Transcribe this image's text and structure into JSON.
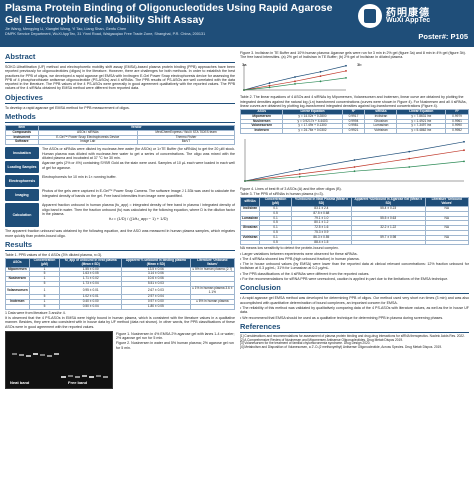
{
  "header": {
    "title": "Plasma Protein Binding of Oligonucleotides Using Rapid Agarose Gel Electrophoretic Mobility Shift Assay",
    "authors": "Jie Wang, Mengying Li, Xiangfei Wang, Yi Tao, Liang Shan, Genfu Chen",
    "affiliation": "DMPK Service Department, WuXi AppTec, 31 Yinni Road, Waigaoqiao Free Trade Zone, Shanghai, P.R. China, 200131",
    "logo_cn": "药明康德",
    "logo_en": "WuXi AppTec",
    "poster_no": "Poster#: P105"
  },
  "abstract": {
    "heading": "Abstract",
    "text": "SOKO-Ultrafiltration (UF) method and electrophoretic mobility shift assay (EMSA)-based plasma protein binding (PPB) approaches have been reported previously for oligonucleotides (oligos) in the literature. However, there are challenges for both methods. In order to establish the best practices for PPB of oligos, we developed a rapid agarose gel EMSA with Invitrogen E-Gel Power Snap electrophoresis device for assessing the PPB of 4 phosphorothioate antisense oligonucleotide (PS-ASOs) and 4 siRNAs. The PPB results of PS-ASOs are well correlated with the data reported in the literature. The PPB values of the 4 PS-ASOs were generally in good agreement qualitatively with the reported values. The PPB values of the 4 siRNAs obtained by EMSA method were different from reported data."
  },
  "objectives": {
    "heading": "Objectives",
    "text": "To develop a rapid agarose gel EMSA method for PPB measurement of oligos."
  },
  "methods": {
    "heading": "Methods",
    "table1_header": [
      "Item",
      "Vendor"
    ],
    "table1_rows": [
      [
        "Compounds",
        "ASOs / siRNAs",
        "MedChemExpress / WuXi STA TIDES team"
      ],
      [
        "Instrument",
        "E-Gel™ Power Snap Electrophoresis Device",
        "Thermo Fisher"
      ],
      [
        "Software",
        "Image Lab",
        "BioVT"
      ]
    ],
    "steps": [
      {
        "label": "Incubation",
        "text": "The ASOs or siRNAs were diluted by nuclease-free water (for ASOs) or 1×TE Buffer (for siRNAs) to get the 20 μM stock. Human plasma was diluted with nuclease-free water to get a series of concentrations. The oligo was mixed with the diluted plasma and incubated at 37 °C for 30 min."
      },
      {
        "label": "Loading Samples",
        "text": "Agarose gels (2% or 4%) containing SYBR Gold as the stain were used. Samples of 10 μL each were loaded in each well of gel for agarose."
      },
      {
        "label": "Electrophoresis",
        "text": "Electrophoresis for 10 min in 1× running buffer."
      },
      {
        "label": "Imaging",
        "text": "Photos of the gels were captured in E-Gel™ Power Snap Camera. The software Image J 1.53k was used to calculate the integrated density of bands on the gel. Free band intensities from image were quantified."
      },
      {
        "label": "Calculation",
        "text": "Apparent fraction unbound in human plasma (fu_app) = integrated density of free band in plasma / integrated density of oligo band in water. Then the fraction unbound (fu) was calculated by the following equation, where D is the dilution factor in the plasma."
      }
    ],
    "equation": "fu = (1/D) / ((1/fu_app − 1) + 1/D)",
    "note": "The apparent fraction unbound was obtained by the following equation, and the ASO was measured in human plasma samples, which migrates more quickly than protein-bound oligo."
  },
  "results": {
    "heading": "Results",
    "table1_caption": "Table 1. PPB values of the 4 ASOs (3% diluted plasma, n=3).",
    "table1_header": [
      "ASOs",
      "Concentration (μM)",
      "fu_app of unbound in neat plasma (Mean ± SD)",
      "Apparent % unbound in binding plasma (Mean ± SD)",
      "Literature 'Unbound Values'"
    ],
    "table1_rows": [
      [
        "Mipomersen",
        "1",
        "1.55 ± 0.00",
        "13.5 ± 0.06",
        "≤ 5% in human plasma (2.7)"
      ],
      [
        "",
        "5",
        "1.63 ± 0.05",
        "3.14 ± 0.06",
        ""
      ],
      [
        "Nusinersen",
        "1",
        "1.71 ± 0.02",
        "10.6 ± 0.06",
        ""
      ],
      [
        "",
        "5",
        "1.73 ± 0.04",
        "5.51 ± 0.03",
        ""
      ],
      [
        "Volanesorsen",
        "1",
        "0.95 ± 0.01",
        "2.67 ± 0.03",
        "≤ 1% in human plasma 3.6 ± 1.1%"
      ],
      [
        "",
        "5",
        "1.02 ± 0.01",
        "2.97 ± 0.04",
        ""
      ],
      [
        "Inotersen",
        "1",
        "0.40 ± 0.00",
        "0.97 ± 0.00",
        "≤ 6% in human plasma"
      ],
      [
        "",
        "5",
        "0.50 ± 0.04",
        "1.80 ± 0.05",
        ""
      ]
    ],
    "table1_note": "1 Data were from literature 3 and/or 4.",
    "results_text": "It is observed that the 4 PS-ASOs in EMSA were highly bound in human plasma, which is consistent with the literature values in a qualitative manner. Besides, they were also consistent with in house data by UF method (data not shown). In other words, the PPB classifications of these ASOs were in good agreement with the reported values.",
    "gel_labels": {
      "left": "Neat band",
      "right": "Free band"
    },
    "fig1_caption": "Figure 1. Nusinersen in 4% EMSA 2% agarose gel with lanes 1-4 or water; 2% agarose gel run for 5 min.",
    "fig2_caption": "Figure 2. Nusinersen in water and 5% human plasma; 2% agarose gel run for 5 min."
  },
  "right": {
    "fig3_caption": "Figure 3. Inclisiran in TE Buffer and 10% human plasma: Agarose gels were run for 3 min in 2% gel (figure 3a) and 8 min in 4% gel (figure 3b). The free band intensities. (a) 2% gel of Inclisiran in TE Buffer; (b) 2% gel of Inclisiran in diluted plasma.",
    "fig3_labels": [
      "3a",
      "3b"
    ],
    "table2_caption": "Table 2. The linear equations of 4 ASOs and 4 siRNAs by Mipomersen, Volanesorsen and Inotersen, linear curve are obtained by plotting the integrated densities against the natural log (Ln) transformed concentrations (curves were shown in Figure 4). For Nusinersen and all 4 siRNAs, linear curves are obtained by plotting log-transformed integrated densities against log-transformed concentrations (Figure 4).",
    "table2_header": [
      "ASOs",
      "Linear Equation",
      "R²",
      "siRNAs",
      "Linear Equation",
      "R²"
    ],
    "table2_rows": [
      [
        "Mipomersen",
        "y = 14.02x + 0.2800",
        "0.9917",
        "Inclisiran",
        "y = 7.8631 lnx",
        "0.9979"
      ],
      [
        "Nusinersen",
        "y = 0.9217x + 4.4403",
        "0.9994",
        "Givosiran",
        "y = 1.4921 lnx",
        "0.9961"
      ],
      [
        "Volanesorsen",
        "y = 17.49x + 0.1300",
        "0.9981",
        "Lumasiran",
        "y = 7.3497 lnx",
        "0.9990"
      ],
      [
        "Inotersen",
        "y = 24.76x + 0.0302",
        "0.9921",
        "Vutrisiran",
        "y = 5.4862 lnx",
        "0.9952"
      ]
    ],
    "fig4_caption": "Figure 4. Lines of best fit of 3 ASOs (A) and the other oligos (B).",
    "table3_caption": "Table 3. The PPB of siRNAs in human plasma (n=3).",
    "table3_header": [
      "siRNAs",
      "Concentration (μM)",
      "%Unbound in Neat Plasma (Mean ± SD)",
      "Apparent %Unbound in Agarose Gel (Mean ± SD)",
      "Literature 'Unbound Values'"
    ],
    "table3_rows": [
      [
        "Inclisiran",
        "0.1",
        "83.1 ± 2.4",
        "55.4 ± 0.23",
        "NA"
      ],
      [
        "",
        "0.5",
        "87.5 ± 0.68",
        "",
        ""
      ],
      [
        "Lumasiran",
        "0.1",
        "79.1 ± 1.0",
        "55.5 ± 0.63",
        "NA"
      ],
      [
        "",
        "0.5",
        "80.1 ± 1.2",
        "",
        ""
      ],
      [
        "Givosiran",
        "0.1",
        "72.5 ± 1.6",
        "32.2 ± 1.22",
        "NA"
      ],
      [
        "",
        "0.5",
        "75.3 ± 0.9",
        "",
        ""
      ],
      [
        "Vutrisiran",
        "0.1",
        "86.3 ± 0.55",
        "59.7 ± 0.98",
        "NA"
      ],
      [
        "",
        "0.5",
        "88.4 ± 1.5",
        "",
        ""
      ]
    ],
    "table3_note": "NA means low sensitivity to detect the protein-bound complex.",
    "bullets": [
      "Larger variations between experiments were observed for these siRNAs.",
      "The 4 siRNAs showed low PPB (high unbound fraction) in human plasma.",
      "The in house unbound values (by EMSA) were lower than the reported data at clinical relevant concentrations: 12% fraction unbound for Inclisiran at 0.3 μg/mL; 31% for Lumasiran at 0.2 μg/mL.",
      "The PPB classifications of the 4 siRNAs were different from the reported values.",
      "For the recommendations for siRNA PPB were unresolved, caution is applied in part due to the limitations of the EMSA technique."
    ],
    "conclusion_heading": "Conclusion",
    "conclusions": [
      "A rapid agarose gel EMSA method was developed for determining PPB of oligos. Our method used very short run times (3 min) and was also accomplished with quantitative determination of bound complexes, an important concern for EMSA.",
      "The reliability of this method was validated by qualitatively comparing data of the 4 PS-ASOs with literature values, as well as the in house UF data.",
      "We recommend that EMSA should be used as a qualitative technique for determining PPB in plasma during screening phases."
    ],
    "refs_heading": "References",
    "refs": [
      "[1] Considerations and recommendations for assessment of plasma protein binding and drug-drug interactions for siRNA therapeutics. Nucleic Acids Res. 2022.",
      "[2] A Comprehensive Review of Nusinersen and Mipomersen Antisense Oligonucleotides. Drug Metab Dispos 2019.",
      "[3] Volanesorsen for the treatment of familial chylomicronemia syndrome. Drug Design 2020.",
      "[4] Metabolism and Disposition of Volanesorsen, a 2'-O-(2 methoxyethyl) Antisense Oligonucleotide, Across Species. Drug Metab Dispos. 2019."
    ]
  },
  "colors": {
    "brand": "#1f4e79",
    "band": "#e8e8e8",
    "gel": "#111111"
  },
  "chart_data": {
    "type": "line",
    "title": "",
    "series": [
      {
        "values": [
          [
            0,
            0
          ],
          [
            0.5,
            8
          ],
          [
            1,
            15
          ],
          [
            1.5,
            21
          ],
          [
            2,
            28
          ]
        ]
      },
      {
        "values": [
          [
            0,
            0
          ],
          [
            0.5,
            5
          ],
          [
            1,
            10
          ],
          [
            1.5,
            16
          ],
          [
            2,
            22
          ]
        ]
      },
      {
        "values": [
          [
            0,
            0
          ],
          [
            0.5,
            3
          ],
          [
            1,
            7
          ],
          [
            1.5,
            10
          ],
          [
            2,
            14
          ]
        ]
      }
    ],
    "xlim": [
      0,
      2
    ],
    "ylim": [
      0,
      30
    ]
  }
}
